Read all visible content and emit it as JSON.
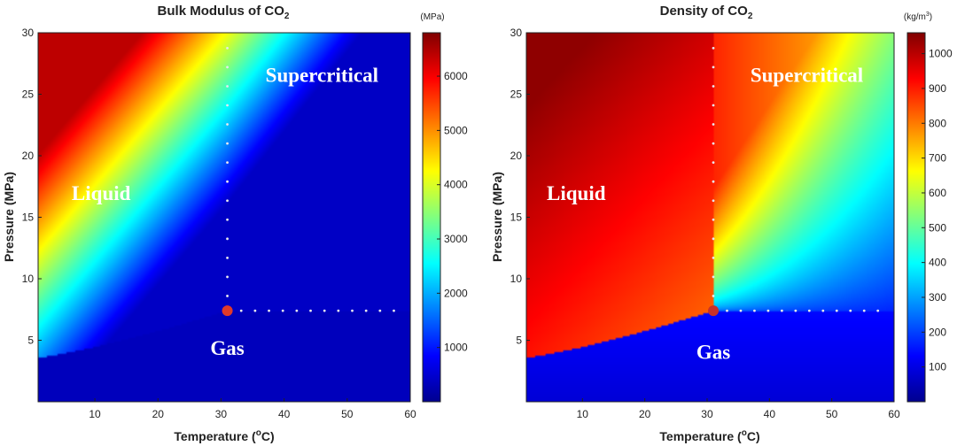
{
  "chart_data": [
    {
      "type": "heatmap",
      "title": "Bulk Modulus of CO",
      "title_sub": "2",
      "xlabel": "Temperature (",
      "xlabel_sup": "o",
      "xlabel_tail": "C)",
      "ylabel": "Pressure (MPa)",
      "xlim": [
        1,
        60
      ],
      "ylim": [
        0,
        30
      ],
      "xticks": [
        10,
        20,
        30,
        40,
        50,
        60
      ],
      "yticks": [
        5,
        10,
        15,
        20,
        25,
        30
      ],
      "colorbar": {
        "unit": "(MPa)",
        "range": [
          0,
          6800
        ],
        "ticks": [
          {
            "value": 1000,
            "label": "1000"
          },
          {
            "value": 2000,
            "label": "2000"
          },
          {
            "value": 3000,
            "label": "3000"
          },
          {
            "value": 4000,
            "label": "4000"
          },
          {
            "value": 5000,
            "label": "5000"
          },
          {
            "value": 6000,
            "label": "6000"
          }
        ]
      },
      "critical_point": {
        "temperature": 31,
        "pressure": 7.4
      },
      "regions": [
        {
          "label": "Liquid",
          "temperature": 11,
          "pressure": 16.4
        },
        {
          "label": "Supercritical",
          "temperature": 46,
          "pressure": 26
        },
        {
          "label": "Gas",
          "temperature": 31,
          "pressure": 3.8
        }
      ],
      "colors": {
        "critical_point": "#e03a2a",
        "guide_dots": "#e8e8ee"
      }
    },
    {
      "type": "heatmap",
      "title": "Density of CO",
      "title_sub": "2",
      "xlabel": "Temperature (",
      "xlabel_sup": "o",
      "xlabel_tail": "C)",
      "ylabel": "Pressure (MPa)",
      "xlim": [
        1,
        60
      ],
      "ylim": [
        0,
        30
      ],
      "xticks": [
        10,
        20,
        30,
        40,
        50,
        60
      ],
      "yticks": [
        5,
        10,
        15,
        20,
        25,
        30
      ],
      "colorbar": {
        "unit": "(kg/m",
        "unit_sup": "3",
        "unit_tail": ")",
        "range": [
          0,
          1060
        ],
        "ticks": [
          {
            "value": 100,
            "label": "100"
          },
          {
            "value": 200,
            "label": "200"
          },
          {
            "value": 300,
            "label": "300"
          },
          {
            "value": 400,
            "label": "400"
          },
          {
            "value": 500,
            "label": "500"
          },
          {
            "value": 600,
            "label": "600"
          },
          {
            "value": 700,
            "label": "700"
          },
          {
            "value": 800,
            "label": "800"
          },
          {
            "value": 900,
            "label": "900"
          },
          {
            "value": 1000,
            "label": "1000"
          }
        ]
      },
      "critical_point": {
        "temperature": 31,
        "pressure": 7.4
      },
      "regions": [
        {
          "label": "Liquid",
          "temperature": 9,
          "pressure": 16.4
        },
        {
          "label": "Supercritical",
          "temperature": 46,
          "pressure": 26
        },
        {
          "label": "Gas",
          "temperature": 31,
          "pressure": 3.5
        }
      ],
      "colors": {
        "critical_point": "#c8302a",
        "guide_dots": "#e8e8ee"
      }
    }
  ]
}
